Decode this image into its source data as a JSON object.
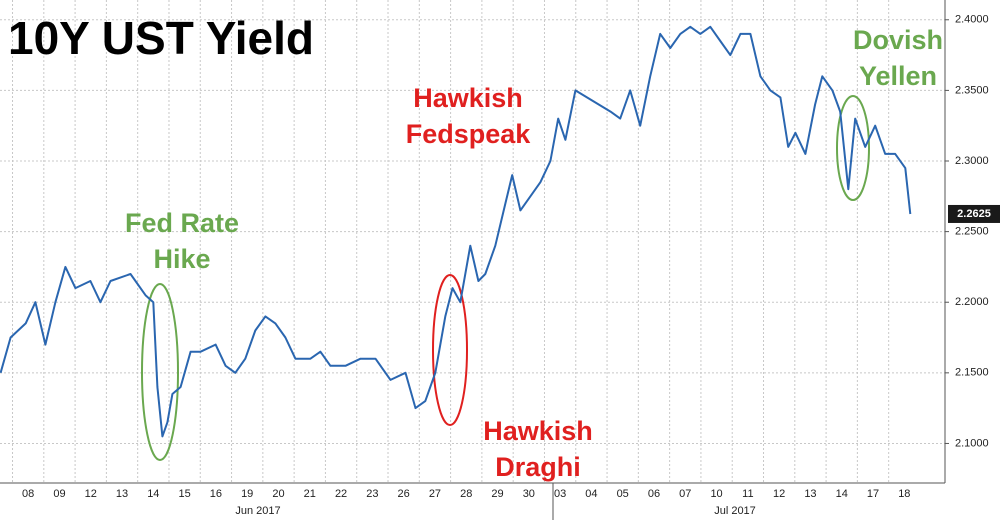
{
  "chart_data": {
    "type": "line",
    "title": "10Y UST Yield",
    "color": "#2a66b0",
    "grid": true,
    "xlim": [
      -0.4,
      29.8
    ],
    "ylim": [
      2.072,
      2.414
    ],
    "xticks": [
      {
        "value": 0,
        "label": "08"
      },
      {
        "value": 1,
        "label": "09"
      },
      {
        "value": 2,
        "label": "12"
      },
      {
        "value": 3,
        "label": "13"
      },
      {
        "value": 4,
        "label": "14"
      },
      {
        "value": 5,
        "label": "15"
      },
      {
        "value": 6,
        "label": "16"
      },
      {
        "value": 7,
        "label": "19"
      },
      {
        "value": 8,
        "label": "20"
      },
      {
        "value": 9,
        "label": "21"
      },
      {
        "value": 10,
        "label": "22"
      },
      {
        "value": 11,
        "label": "23"
      },
      {
        "value": 12,
        "label": "26"
      },
      {
        "value": 13,
        "label": "27"
      },
      {
        "value": 14,
        "label": "28"
      },
      {
        "value": 15,
        "label": "29"
      },
      {
        "value": 16,
        "label": "30"
      },
      {
        "value": 17,
        "label": "03"
      },
      {
        "value": 18,
        "label": "04"
      },
      {
        "value": 19,
        "label": "05"
      },
      {
        "value": 20,
        "label": "06"
      },
      {
        "value": 21,
        "label": "07"
      },
      {
        "value": 22,
        "label": "10"
      },
      {
        "value": 23,
        "label": "11"
      },
      {
        "value": 24,
        "label": "12"
      },
      {
        "value": 25,
        "label": "13"
      },
      {
        "value": 26,
        "label": "14"
      },
      {
        "value": 27,
        "label": "17"
      },
      {
        "value": 28,
        "label": "18"
      }
    ],
    "months": [
      "Jun 2017",
      "Jul 2017"
    ],
    "yticks": [
      {
        "value": 2.1,
        "label": "2.1000"
      },
      {
        "value": 2.15,
        "label": "2.1500"
      },
      {
        "value": 2.2,
        "label": "2.2000"
      },
      {
        "value": 2.25,
        "label": "2.2500"
      },
      {
        "value": 2.3,
        "label": "2.3000"
      },
      {
        "value": 2.35,
        "label": "2.3500"
      },
      {
        "value": 2.4,
        "label": "2.4000"
      }
    ],
    "last_value": 2.2625,
    "x": [
      -0.38,
      -0.06,
      0.42,
      0.73,
      1.05,
      1.37,
      1.69,
      2.01,
      2.49,
      2.81,
      3.13,
      3.77,
      4.25,
      4.5,
      4.63,
      4.79,
      4.95,
      5.11,
      5.37,
      5.69,
      6.01,
      6.49,
      6.81,
      7.12,
      7.44,
      7.76,
      8.08,
      8.4,
      8.72,
      9.04,
      9.52,
      9.84,
      10.16,
      10.64,
      11.12,
      11.6,
      12.08,
      12.56,
      12.88,
      13.19,
      13.51,
      13.83,
      14.06,
      14.31,
      14.63,
      14.89,
      15.11,
      15.43,
      15.75,
      15.97,
      16.23,
      16.55,
      16.87,
      17.19,
      17.44,
      17.67,
      17.99,
      19.11,
      19.42,
      19.74,
      20.06,
      20.38,
      20.7,
      21.02,
      21.34,
      21.66,
      21.98,
      22.3,
      22.62,
      22.94,
      23.26,
      23.58,
      23.9,
      24.22,
      24.54,
      24.79,
      25.02,
      25.34,
      25.65,
      25.88,
      26.2,
      26.45,
      26.71,
      26.93,
      27.25,
      27.57,
      27.89,
      28.21,
      28.53,
      28.69
    ],
    "values": [
      2.15,
      2.175,
      2.185,
      2.2,
      2.17,
      2.2,
      2.225,
      2.21,
      2.215,
      2.2,
      2.215,
      2.22,
      2.205,
      2.2,
      2.14,
      2.105,
      2.115,
      2.135,
      2.14,
      2.165,
      2.165,
      2.17,
      2.155,
      2.15,
      2.16,
      2.18,
      2.19,
      2.185,
      2.175,
      2.16,
      2.16,
      2.165,
      2.155,
      2.155,
      2.16,
      2.16,
      2.145,
      2.15,
      2.125,
      2.13,
      2.15,
      2.19,
      2.21,
      2.2,
      2.24,
      2.215,
      2.22,
      2.24,
      2.27,
      2.29,
      2.265,
      2.275,
      2.285,
      2.3,
      2.33,
      2.315,
      2.35,
      2.335,
      2.33,
      2.35,
      2.325,
      2.36,
      2.39,
      2.38,
      2.39,
      2.395,
      2.39,
      2.395,
      2.385,
      2.375,
      2.39,
      2.39,
      2.36,
      2.35,
      2.345,
      2.31,
      2.32,
      2.305,
      2.34,
      2.36,
      2.35,
      2.335,
      2.28,
      2.33,
      2.31,
      2.325,
      2.305,
      2.305,
      2.295,
      2.2625
    ],
    "annotations": [
      {
        "lines": [
          "Fed Rate",
          "Hike"
        ],
        "color": "#6aa84f"
      },
      {
        "lines": [
          "Hawkish",
          "Fedspeak"
        ],
        "color": "#e0201f"
      },
      {
        "lines": [
          "Hawkish",
          "Draghi"
        ],
        "color": "#e0201f"
      },
      {
        "lines": [
          "Dovish",
          "Yellen"
        ],
        "color": "#6aa84f"
      }
    ]
  }
}
